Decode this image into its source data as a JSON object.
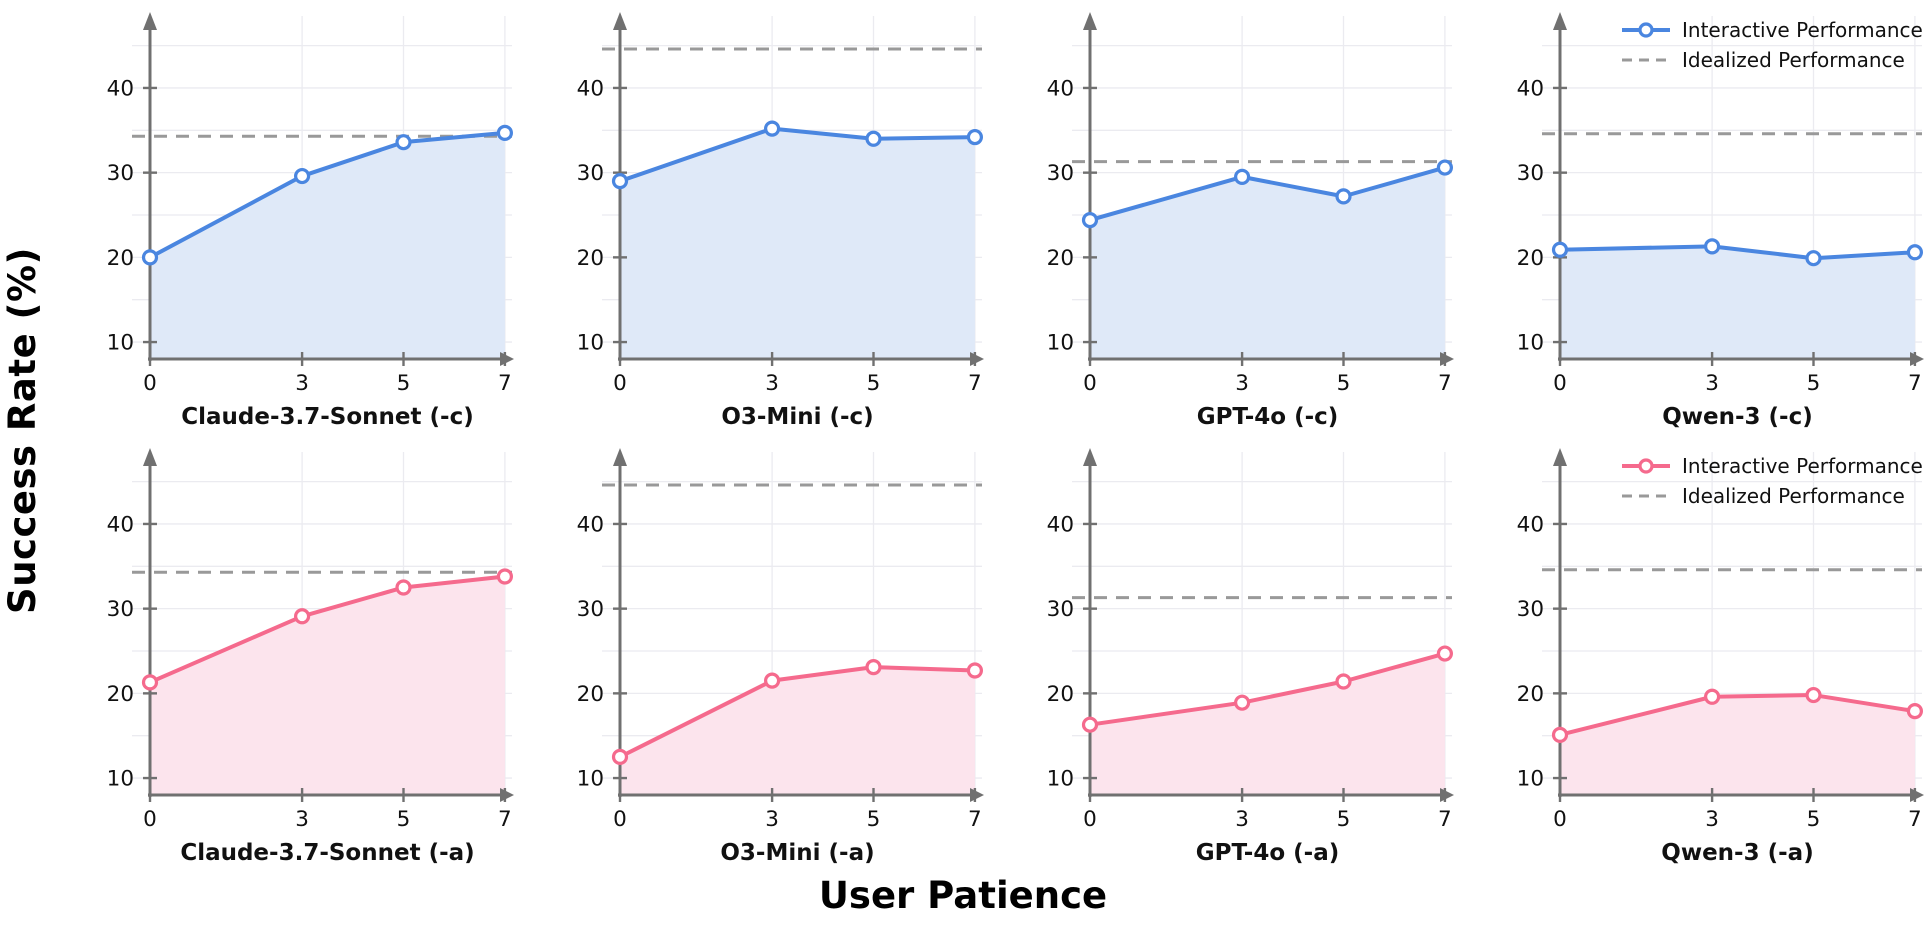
{
  "chart_data": {
    "type": "line",
    "xlabel": "User Patience",
    "ylabel": "Success Rate (%)",
    "x": [
      0,
      3,
      5,
      7
    ],
    "xticks": [
      0,
      3,
      5,
      7
    ],
    "yticks": [
      10,
      20,
      30,
      40
    ],
    "ylim": [
      8,
      48
    ],
    "xlim": [
      0,
      7.2
    ],
    "grid": true,
    "legend_position": "upper right",
    "legend": {
      "interactive_label": "Interactive Performance",
      "idealized_label": "Idealized Performance"
    },
    "colors": {
      "blue_line": "#4a86e0",
      "blue_fill": "#dfe9f8",
      "pink_line": "#f56a8d",
      "pink_fill": "#fce4ed",
      "idealized_line": "#999999",
      "axis": "#707070",
      "gridline": "#ebebf0",
      "text": "#111111"
    },
    "panels": [
      {
        "title": "Claude-3.7-Sonnet (-c)",
        "palette": "blue",
        "interactive": [
          20.0,
          29.6,
          33.6,
          34.7
        ],
        "idealized": 34.3,
        "show_legend": false
      },
      {
        "title": "O3-Mini (-c)",
        "palette": "blue",
        "interactive": [
          29.0,
          35.2,
          34.0,
          34.2
        ],
        "idealized": 44.6,
        "show_legend": false
      },
      {
        "title": "GPT-4o (-c)",
        "palette": "blue",
        "interactive": [
          24.4,
          29.5,
          27.2,
          30.6
        ],
        "idealized": 31.3,
        "show_legend": false
      },
      {
        "title": "Qwen-3 (-c)",
        "palette": "blue",
        "interactive": [
          20.9,
          21.3,
          19.9,
          20.6
        ],
        "idealized": 34.6,
        "show_legend": true
      },
      {
        "title": "Claude-3.7-Sonnet (-a)",
        "palette": "pink",
        "interactive": [
          21.3,
          29.1,
          32.5,
          33.8
        ],
        "idealized": 34.3,
        "show_legend": false
      },
      {
        "title": "O3-Mini (-a)",
        "palette": "pink",
        "interactive": [
          12.5,
          21.5,
          23.1,
          22.7
        ],
        "idealized": 44.6,
        "show_legend": false
      },
      {
        "title": "GPT-4o (-a)",
        "palette": "pink",
        "interactive": [
          16.3,
          18.9,
          21.4,
          24.7
        ],
        "idealized": 31.3,
        "show_legend": false
      },
      {
        "title": "Qwen-3 (-a)",
        "palette": "pink",
        "interactive": [
          15.1,
          19.6,
          19.8,
          17.9
        ],
        "idealized": 34.6,
        "show_legend": true
      }
    ]
  }
}
